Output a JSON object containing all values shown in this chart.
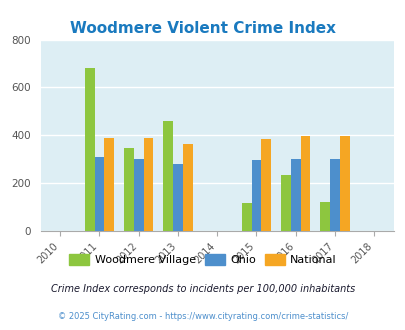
{
  "title": "Woodmere Violent Crime Index",
  "title_color": "#1a7abf",
  "years": [
    2010,
    2011,
    2012,
    2013,
    2014,
    2015,
    2016,
    2017,
    2018
  ],
  "data_years": [
    2011,
    2012,
    2013,
    2015,
    2016,
    2017
  ],
  "woodmere": [
    680,
    345,
    460,
    115,
    232,
    120
  ],
  "ohio": [
    310,
    300,
    282,
    298,
    302,
    300
  ],
  "national": [
    388,
    388,
    365,
    383,
    398,
    398
  ],
  "woodmere_color": "#8dc63f",
  "ohio_color": "#4d8fcc",
  "national_color": "#f5a623",
  "plot_bg": "#ddeef4",
  "bar_width": 0.25,
  "ylim": [
    0,
    800
  ],
  "yticks": [
    0,
    200,
    400,
    600,
    800
  ],
  "legend_labels": [
    "Woodmere Village",
    "Ohio",
    "National"
  ],
  "footnote1": "Crime Index corresponds to incidents per 100,000 inhabitants",
  "footnote2": "© 2025 CityRating.com - https://www.cityrating.com/crime-statistics/",
  "footnote1_color": "#1a1a2e",
  "footnote2_color": "#4d8fcc"
}
